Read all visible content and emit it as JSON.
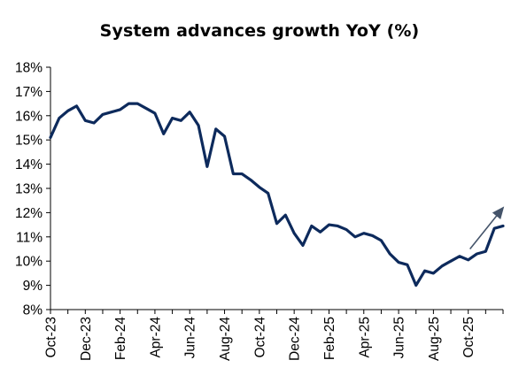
{
  "chart_data": {
    "type": "line",
    "title": "System advances growth YoY (%)",
    "xlabel": "",
    "ylabel": "",
    "ylim": [
      8,
      18
    ],
    "yticks": [
      "8%",
      "9%",
      "10%",
      "11%",
      "12%",
      "13%",
      "14%",
      "15%",
      "16%",
      "17%",
      "18%"
    ],
    "xticks": [
      "Oct-23",
      "Dec-23",
      "Feb-24",
      "Apr-24",
      "Jun-24",
      "Aug-24",
      "Oct-24",
      "Dec-24",
      "Feb-25",
      "Apr-25",
      "Jun-25",
      "Aug-25",
      "Oct-25"
    ],
    "grid": false,
    "legend": "none",
    "series": [
      {
        "color": "#0d2a5c",
        "values": [
          15.1,
          15.9,
          16.2,
          16.4,
          15.8,
          15.7,
          16.05,
          16.15,
          16.25,
          16.5,
          16.5,
          16.3,
          16.1,
          15.25,
          15.9,
          15.8,
          16.15,
          15.6,
          13.9,
          15.45,
          15.15,
          13.6,
          13.6,
          13.35,
          13.05,
          12.8,
          11.55,
          11.9,
          11.15,
          10.65,
          11.45,
          11.2,
          11.5,
          11.45,
          11.3,
          11.0,
          11.15,
          11.05,
          10.85,
          10.3,
          9.95,
          9.85,
          9.0,
          9.6,
          9.5,
          9.8,
          10.0,
          10.2,
          10.05,
          10.3,
          10.4,
          11.35,
          11.45
        ]
      }
    ],
    "annotations": [
      {
        "type": "arrow",
        "color": "#44546a",
        "x_start": 48.2,
        "y_start": 10.5,
        "x_end": 52.0,
        "y_end": 12.2
      }
    ]
  }
}
